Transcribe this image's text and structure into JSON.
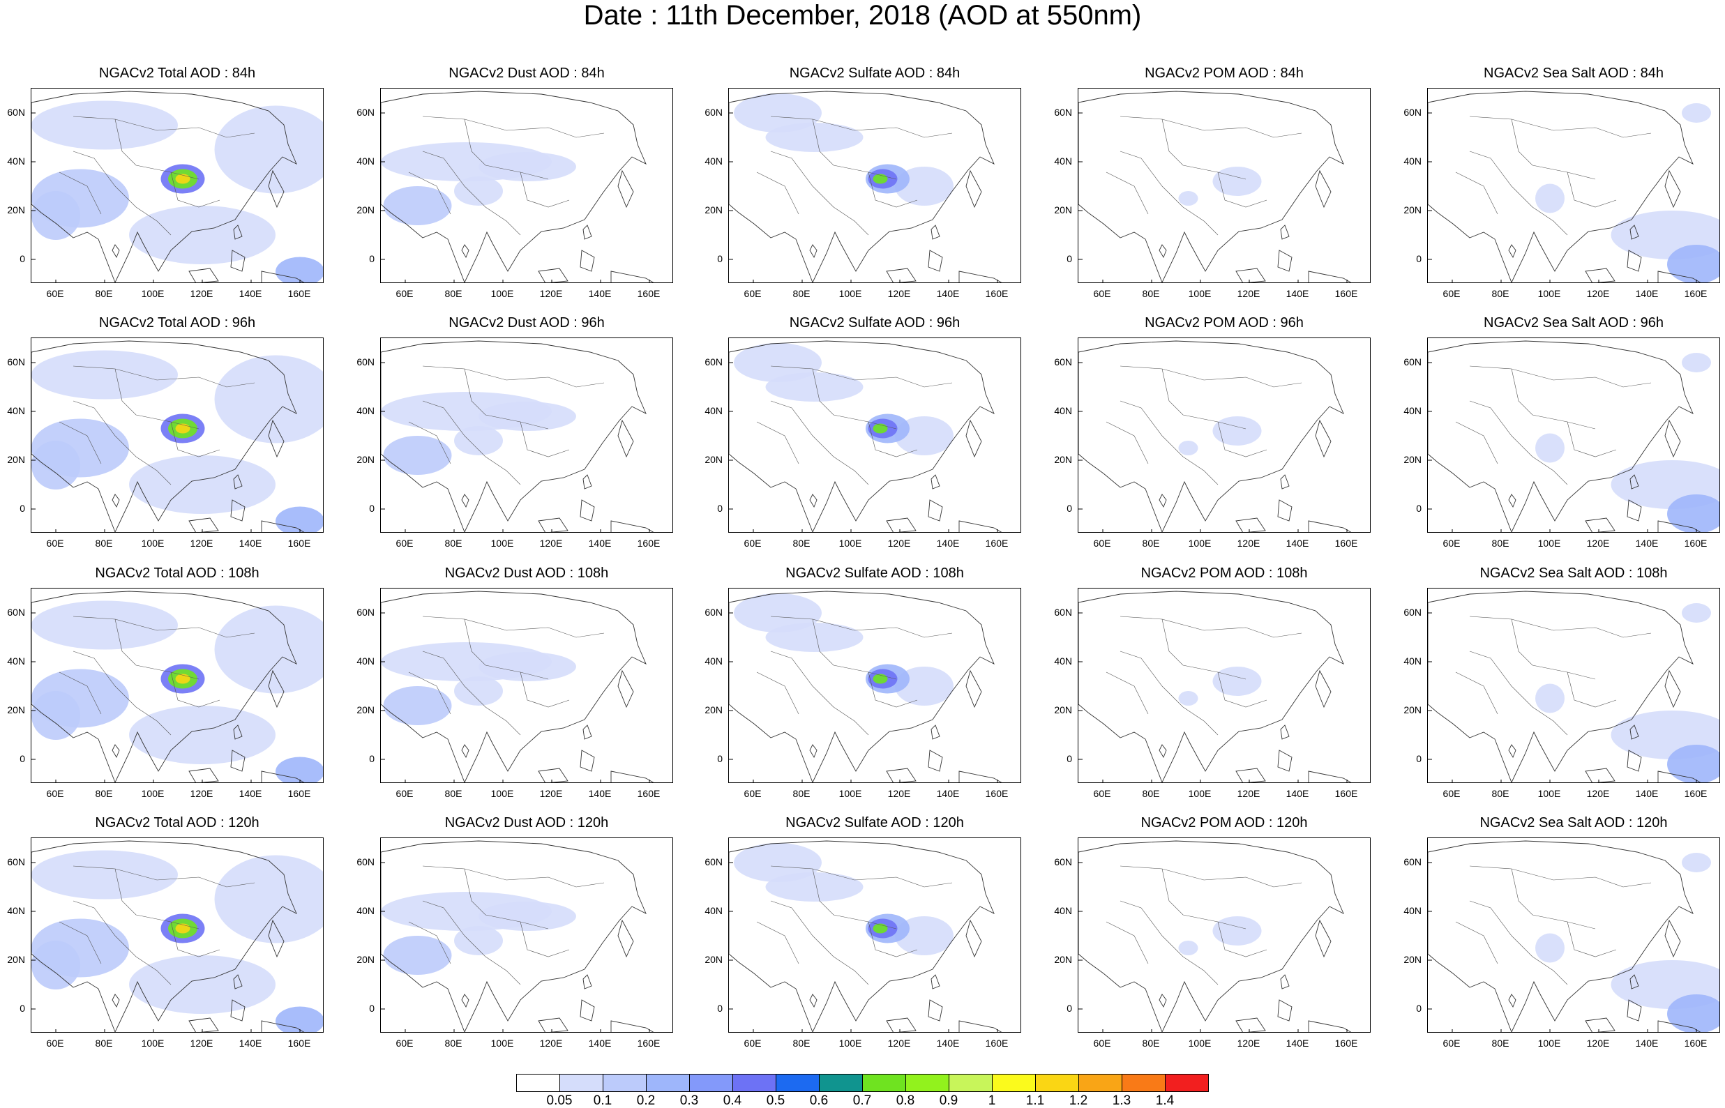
{
  "title": "Date : 11th December, 2018 (AOD at 550nm)",
  "panel_titles": [
    [
      "NGACv2 Total AOD : 84h",
      "NGACv2 Dust AOD : 84h",
      "NGACv2 Sulfate AOD : 84h",
      "NGACv2 POM AOD : 84h",
      "NGACv2 Sea Salt AOD : 84h"
    ],
    [
      "NGACv2 Total AOD : 96h",
      "NGACv2 Dust AOD : 96h",
      "NGACv2 Sulfate AOD : 96h",
      "NGACv2 POM AOD : 96h",
      "NGACv2 Sea Salt AOD : 96h"
    ],
    [
      "NGACv2 Total AOD : 108h",
      "NGACv2 Dust AOD : 108h",
      "NGACv2 Sulfate AOD : 108h",
      "NGACv2 POM AOD : 108h",
      "NGACv2 Sea Salt AOD : 108h"
    ],
    [
      "NGACv2 Total AOD : 120h",
      "NGACv2 Dust AOD : 120h",
      "NGACv2 Sulfate AOD : 120h",
      "NGACv2 POM AOD : 120h",
      "NGACv2 Sea Salt  AOD : 120h"
    ]
  ],
  "axes": {
    "lat_labels": [
      "60N",
      "40N",
      "20N",
      "0"
    ],
    "lat_values": [
      60,
      40,
      20,
      0
    ],
    "lon_labels": [
      "60E",
      "80E",
      "100E",
      "120E",
      "140E",
      "160E"
    ],
    "lon_values": [
      60,
      80,
      100,
      120,
      140,
      160
    ],
    "lon_range": [
      50,
      170
    ],
    "lat_range": [
      -10,
      70
    ]
  },
  "colorbar": {
    "labels": [
      "0.05",
      "0.1",
      "0.2",
      "0.3",
      "0.4",
      "0.5",
      "0.6",
      "0.7",
      "0.8",
      "0.9",
      "1",
      "1.1",
      "1.2",
      "1.3",
      "1.4"
    ],
    "colors": [
      "#ffffff",
      "#d5ddfb",
      "#bccbfb",
      "#9eb6fb",
      "#8399fa",
      "#6d72f5",
      "#1c6af1",
      "#10948f",
      "#6fe320",
      "#92f21d",
      "#c8f55a",
      "#fbfa1c",
      "#fad614",
      "#f9a516",
      "#f97a17",
      "#f21f1f"
    ]
  }
}
